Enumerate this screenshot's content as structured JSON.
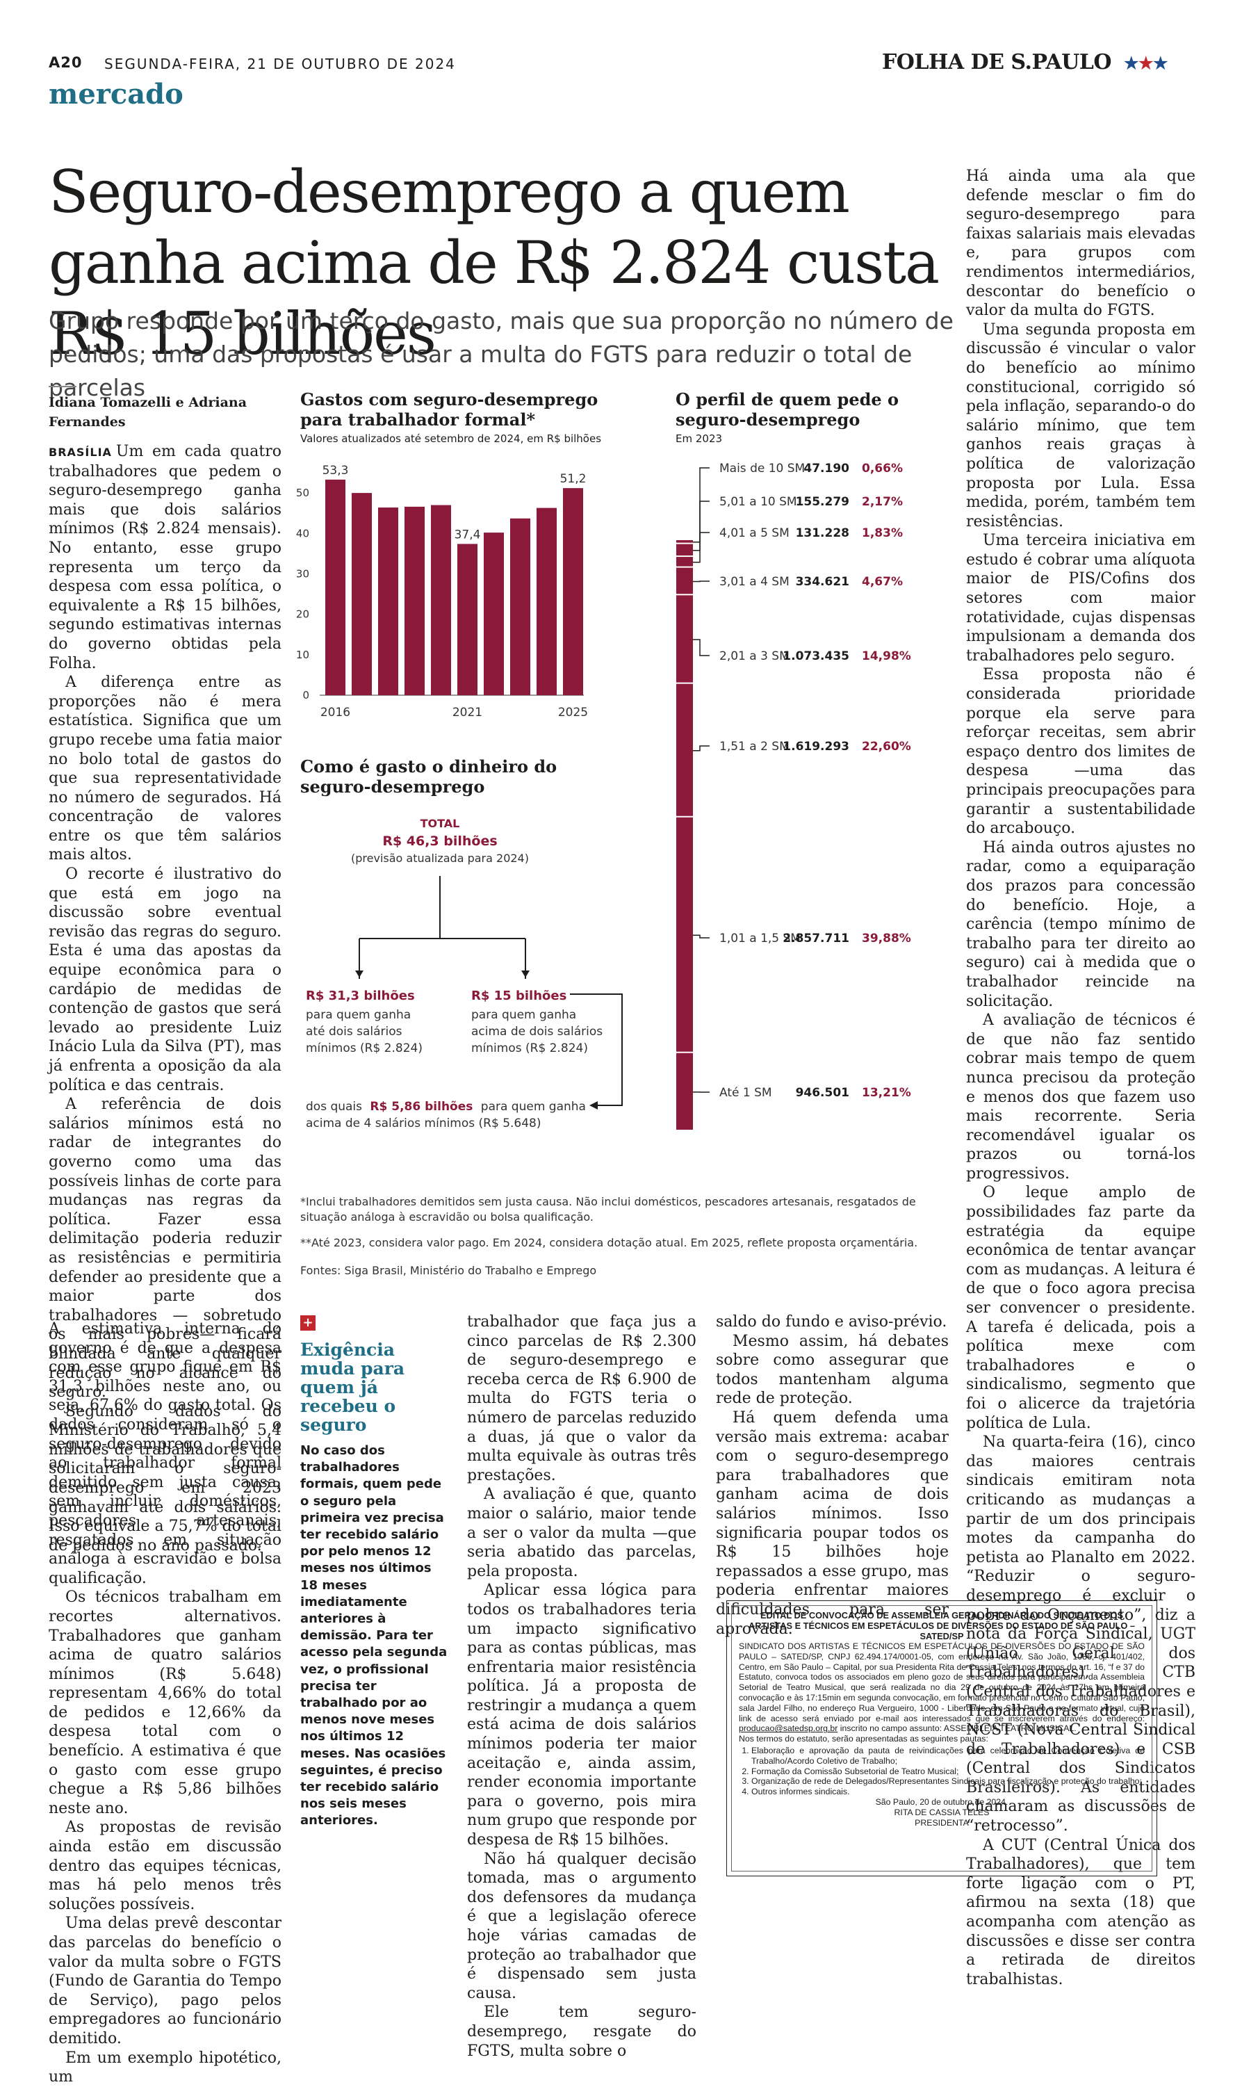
{
  "header": {
    "page_number": "A20",
    "date": "SEGUNDA-FEIRA, 21 DE OUTUBRO DE 2024",
    "masthead": "FOLHA DE S.PAULO",
    "stars": "★★★",
    "section": "mercado"
  },
  "article": {
    "headline": "Seguro-desemprego a quem ganha acima de R$ 2.824 custa R$ 15 bilhões",
    "dek": "Grupo responde por um terço do gasto, mais que sua proporção no número de pedidos; uma das propostas é usar a multa do FGTS para reduzir o total de parcelas",
    "byline": "Idiana Tomazelli e Adriana Fernandes",
    "dateline": "BRASÍLIA",
    "paragraphs_col1": [
      "Um em cada quatro trabalhadores que pedem o seguro-desemprego ganha mais que dois salários mínimos (R$ 2.824 mensais). No entanto, esse grupo representa um terço da despesa com essa política, o equivalente a R$ 15 bilhões, segundo estimativas internas do governo obtidas pela Folha.",
      "A diferença entre as proporções não é mera estatística. Significa que um grupo recebe uma fatia maior no bolo total de gastos do que sua representatividade no número de segurados. Há concentração de valores entre os que têm salários mais altos.",
      "O recorte é ilustrativo do que está em jogo na discussão sobre eventual revisão das regras do seguro. Esta é uma das apostas da equipe econômica para o cardápio de medidas de contenção de gastos que será levado ao presidente Luiz Inácio Lula da Silva (PT), mas já enfrenta a oposição da ala política e das centrais.",
      "A referência de dois salários mínimos está no radar de integrantes do governo como uma das possíveis linhas de corte para mudanças nas regras da política. Fazer essa delimitação poderia reduzir as resistências e permitiria defender ao presidente que a maior parte dos trabalhadores — sobretudo os mais pobres— ficará blindada ante qualquer redução no alcance do seguro.",
      "Segundo dados do Ministério do Trabalho, 5,4 milhões de trabalhadores que solicitaram o seguro-desemprego em 2023 ganhavam até dois salários. Isso equivale a 75,7% do total de pedidos no ano passado."
    ],
    "paragraphs_col1b": [
      "A estimativa interna do governo é de que a despesa com esse grupo fique em R$ 31,3 bilhões neste ano, ou seja, 67,6% do gasto total. Os dados consideram só o seguro-desemprego devido ao trabalhador formal demitido sem justa causa, sem incluir domésticos, pescadores artesanais, resgatados em situação análoga à escravidão e bolsa qualificação.",
      "Os técnicos trabalham em recortes alternativos. Trabalhadores que ganham acima de quatro salários mínimos (R$ 5.648) representam 4,66% do total de pedidos e 12,66% da despesa total com o benefício. A estimativa é que o gasto com esse grupo chegue a R$ 5,86 bilhões neste ano.",
      "As propostas de revisão ainda estão em discussão dentro das equipes técnicas, mas há pelo menos três soluções possíveis.",
      "Uma delas prevê descontar das parcelas do benefício o valor da multa sobre o FGTS (Fundo de Garantia do Tempo de Serviço), pago pelos empregadores ao funcionário demitido.",
      "Em um exemplo hipotético, um"
    ],
    "paragraphs_col3": [
      "trabalhador que faça jus a cinco parcelas de R$ 2.300 de seguro-desemprego e receba cerca de R$ 6.900 de multa do FGTS teria o número de parcelas reduzido a duas, já que o valor da multa equivale às outras três prestações.",
      "A avaliação é que, quanto maior o salário, maior tende a ser o valor da multa —que seria abatido das parcelas, pela proposta.",
      "Aplicar essa lógica para todos os trabalhadores teria um impacto significativo para as contas públicas, mas enfrentaria maior resistência política. Já a proposta de restringir a mudança a quem está acima de dois salários mínimos poderia ter maior aceitação e, ainda assim, render economia importante para o governo, pois mira num grupo que responde por despesa de R$ 15 bilhões.",
      "Não há qualquer decisão tomada, mas o argumento dos defensores da mudança é que a legislação oferece hoje várias camadas de proteção ao trabalhador que é dispensado sem justa causa.",
      "Ele tem seguro-desemprego, resgate do FGTS, multa sobre o"
    ],
    "paragraphs_col4": [
      "saldo do fundo e aviso-prévio.",
      "Mesmo assim, há debates sobre como assegurar que todos mantenham alguma rede de proteção.",
      "Há quem defenda uma versão mais extrema: acabar com o seguro-desemprego para trabalhadores que ganham acima de dois salários mínimos. Isso significaria poupar todos os R$ 15 bilhões hoje repassados a esse grupo, mas poderia enfrentar maiores dificuldades para ser aprovada."
    ],
    "paragraphs_col5": [
      "Há ainda uma ala que defende mesclar o fim do seguro-desemprego para faixas salariais mais elevadas e, para grupos com rendimentos intermediários, descontar do benefício o valor da multa do FGTS.",
      "Uma segunda proposta em discussão é vincular o valor do benefício ao mínimo constitucional, corrigido só pela inflação, separando-o do salário mínimo, que tem ganhos reais graças à política de valorização proposta por Lula. Essa medida, porém, também tem resistências.",
      "Uma terceira iniciativa em estudo é cobrar uma alíquota maior de PIS/Cofins dos setores com maior rotatividade, cujas dispensas impulsionam a demanda dos trabalhadores pelo seguro.",
      "Essa proposta não é considerada prioridade porque ela serve para reforçar receitas, sem abrir espaço dentro dos limites de despesa —uma das principais preocupações para garantir a sustentabilidade do arcabouço.",
      "Há ainda outros ajustes no radar, como a equiparação dos prazos para concessão do benefício. Hoje, a carência (tempo mínimo de trabalho para ter direito ao seguro) cai à medida que o trabalhador reincide na solicitação.",
      "A avaliação de técnicos é de que não faz sentido cobrar mais tempo de quem nunca precisou da proteção e menos dos que fazem uso mais recorrente. Seria recomendável igualar os prazos ou torná-los progressivos.",
      "O leque amplo de possibilidades faz parte da estratégia da equipe econômica de tentar avançar com as mudanças. A leitura é de que o foco agora precisa ser convencer o presidente. A tarefa é delicada, pois a política mexe com trabalhadores e o sindicalismo, segmento que foi o alicerce da trajetória política de Lula.",
      "Na quarta-feira (16), cinco das maiores centrais sindicais emitiram nota criticando as mudanças a partir de um dos principais motes da campanha do petista ao Planalto em 2022. “Reduzir o seguro-desemprego é excluir o pobre do Orçamento”, diz a nota da Força Sindical, UGT (União Geral dos Trabalhadores), CTB (Central dos Trabalhadores e Trabalhadoras do Brasil), NCST (Nova Central Sindical de Trabalhadores) e CSB (Central dos Sindicatos Brasileiros). As entidades chamaram as discussões de “retrocesso”.",
      "A CUT (Central Única dos Trabalhadores), que tem forte ligação com o PT, afirmou na sexta (18) que acompanha com atenção as discussões e disse ser contra a retirada de direitos trabalhistas."
    ]
  },
  "chart_data": [
    {
      "type": "bar",
      "title": "Gastos com seguro-desemprego para trabalhador formal*",
      "subtitle": "Valores atualizados até setembro de 2024, em R$ bilhões",
      "categories": [
        "2016",
        "2017",
        "2018",
        "2019",
        "2020",
        "2021",
        "2022",
        "2023",
        "2024",
        "2025"
      ],
      "x_tick_labels": [
        "2016",
        "2021",
        "2025"
      ],
      "values": [
        53.3,
        50.0,
        46.4,
        46.6,
        47.0,
        37.4,
        40.2,
        43.7,
        46.3,
        51.2
      ],
      "data_labels": {
        "2016": "53,3",
        "2021": "37,4",
        "2025": "51,2"
      },
      "y_ticks": [
        "0",
        "10",
        "20",
        "30",
        "40",
        "50"
      ],
      "ylim": [
        0,
        55
      ],
      "xlabel": "",
      "ylabel": "",
      "bar_color": "#8b1a3a",
      "grid": false
    },
    {
      "type": "bar",
      "title": "O perfil de quem pede o seguro-desemprego",
      "subtitle": "Em 2023",
      "categories": [
        "Mais de 10 SM",
        "5,01 a 10 SM",
        "4,01 a 5 SM",
        "3,01 a 4 SM",
        "2,01 a 3 SM",
        "1,51 a 2 SM",
        "1,01 a 1,5 SM",
        "Até 1 SM"
      ],
      "count_labels": [
        "47.190",
        "155.279",
        "131.228",
        "334.621",
        "1.073.435",
        "1.619.293",
        "2.857.711",
        "946.501"
      ],
      "values": [
        47190,
        155279,
        131228,
        334621,
        1073435,
        1619293,
        2857711,
        946501
      ],
      "percent_labels": [
        "0,66%",
        "2,17%",
        "1,83%",
        "4,67%",
        "14,98%",
        "22,60%",
        "39,88%",
        "13,21%"
      ],
      "percent_values": [
        0.66,
        2.17,
        1.83,
        4.67,
        14.98,
        22.6,
        39.88,
        13.21
      ],
      "bar_color": "#8b1a3a",
      "percent_color": "#8b1a3a"
    }
  ],
  "flow_chart": {
    "title": "Como é gasto o dinheiro do seguro-desemprego",
    "total_label": "TOTAL",
    "total_value": "R$ 46,3 bilhões",
    "total_note": "(previsão atualizada para 2024)",
    "left_value": "R$ 31,3 bilhões",
    "left_text": [
      "para quem ganha",
      "até dois salários",
      "mínimos (R$ 2.824)"
    ],
    "right_value": "R$ 15 bilhões",
    "right_text": [
      "para quem ganha",
      "acima de dois salários",
      "mínimos (R$ 2.824)"
    ],
    "sub_prefix": "dos quais",
    "sub_value": "R$ 5,86 bilhões",
    "sub_suffix": "para quem ganha",
    "sub_line2": "acima de 4 salários mínimos (R$ 5.648)",
    "accent_color": "#8b1a3a"
  },
  "notes": {
    "note1": "*Inclui trabalhadores demitidos sem justa causa. Não inclui domésticos, pescadores artesanais, resgatados de situação análoga à escravidão ou bolsa qualificação.",
    "note2": "**Até 2023, considera valor pago. Em 2024, considera dotação atual. Em 2025, reflete proposta orçamentária.",
    "note3": "Fontes: Siga Brasil, Ministério do Trabalho e Emprego"
  },
  "sidebar": {
    "icon": "+",
    "title": "Exigência muda para quem já recebeu o seguro",
    "body": "No caso dos trabalhadores formais, quem pede o seguro pela primeira vez precisa ter recebido salário por pelo menos 12 meses nos últimos 18 meses imediatamente anteriores à demissão. Para ter acesso pela segunda vez, o profissional precisa ter trabalhado por ao menos nove meses nos últimos 12 meses. Nas ocasiões seguintes, é preciso ter recebido salário nos seis meses anteriores."
  },
  "notice": {
    "title": "EDITAL DE CONVOCAÇÃO DE ASSEMBLEIA GERAL ORDINÁRIA DO SINDICATO DOS ARTISTAS E TÉCNICOS EM ESPETÁCULOS DE DIVERSÕES DO ESTADO DE SÃO PAULO – SATED/SP",
    "body": "SINDICATO DOS ARTISTAS E TÉCNICOS EM ESPETÁCULOS DE DIVERSÕES DO ESTADO DE SÃO PAULO – SATED/SP, CNPJ 62.494.174/0001-05, com endereço na Av. São João, 1086, cj. 401/402, Centro, em São Paulo – Capital, por sua Presidenta Rita de Cassia Teles, nos termos do art. 16, “f e 37 do Estatuto, convoca todos os associados em pleno gozo de seus direitos para participarem da Assembleia Setorial de Teatro Musical, que será realizada no dia 29 de outubro de 2024 às 17hs em primeira convocação e às 17:15min em segunda convocação, em formato presencial no Centro Cultural São Paulo, sala Jardel Filho, no endereço Rua Vergueiro, 1000 - Liberdade, em São Paulo e no formato virtual, cujo link de acesso será enviado por e-mail aos interessados que se inscreverem através do endereço:",
    "email": "producao@satedsp.org.br",
    "body_after_email": "inscrito no campo assunto: ASSEMBLEIA TEATRO MUSICAL.",
    "agenda_intro": "Nos termos do estatuto, serão apresentadas as seguintes pautas:",
    "agenda": [
      "Elaboração e aprovação da pauta de reivindicações para celebração de Convenção Coletiva de Trabalho/Acordo Coletivo de Trabalho;",
      "Formação da Comissão Subsetorial de Teatro Musical;",
      "Organização de rede de Delegados/Representantes Sindicais para fiscalização e proteção do trabalho;",
      "Outros informes sindicais."
    ],
    "place_date": "São Paulo, 20 de outubro de 2024.",
    "signer": "RITA DE CASSIA TELES",
    "signer_role": "PRESIDENTA"
  }
}
